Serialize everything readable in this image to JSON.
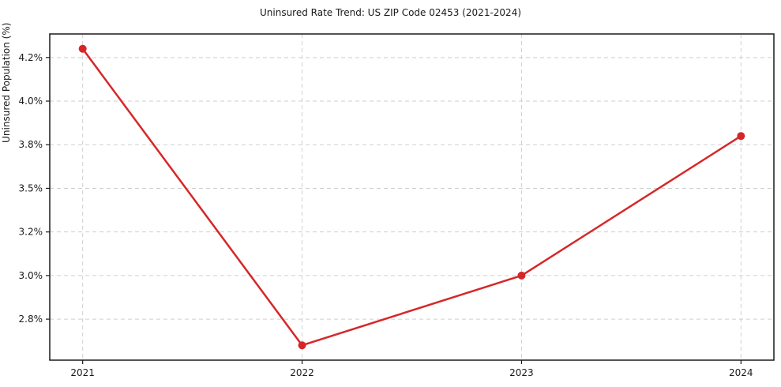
{
  "chart_data": {
    "type": "line",
    "title": "Uninsured Rate Trend: US ZIP Code 02453 (2021-2024)",
    "xlabel": "",
    "ylabel": "Uninsured Population (%)",
    "x": [
      2021,
      2022,
      2023,
      2024
    ],
    "series": [
      {
        "name": "Uninsured rate",
        "values": [
          4.3,
          2.6,
          3.0,
          3.8
        ]
      }
    ],
    "x_ticks": [
      {
        "value": 2021,
        "label": "2021"
      },
      {
        "value": 2022,
        "label": "2022"
      },
      {
        "value": 2023,
        "label": "2023"
      },
      {
        "value": 2024,
        "label": "2024"
      }
    ],
    "y_ticks": [
      {
        "value": 2.75,
        "label": "2.8%"
      },
      {
        "value": 3.0,
        "label": "3.0%"
      },
      {
        "value": 3.25,
        "label": "3.2%"
      },
      {
        "value": 3.5,
        "label": "3.5%"
      },
      {
        "value": 3.75,
        "label": "3.8%"
      },
      {
        "value": 4.0,
        "label": "4.0%"
      },
      {
        "value": 4.25,
        "label": "4.2%"
      }
    ],
    "xlim": [
      2020.85,
      2024.15
    ],
    "ylim": [
      2.515,
      4.385
    ],
    "grid": true,
    "legend_position": "none",
    "colors": {
      "line": "#d62728",
      "marker": "#d62728",
      "grid": "#cfcfcf",
      "spine": "#1a1a1a",
      "text": "#1a1a1a",
      "background": "#ffffff"
    }
  }
}
